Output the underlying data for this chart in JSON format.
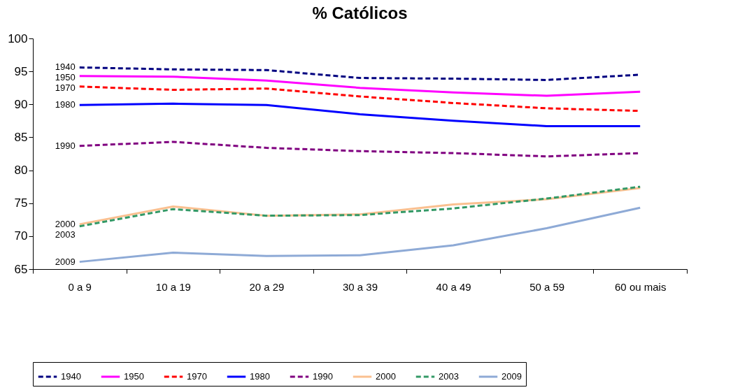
{
  "chart_data": {
    "type": "line",
    "title": "% Católicos",
    "categories": [
      "0 a 9",
      "10 a 19",
      "20 a 29",
      "30 a 39",
      "40 a 49",
      "50 a 59",
      "60 ou mais"
    ],
    "ylim": [
      65,
      100
    ],
    "yticks": [
      65,
      70,
      75,
      80,
      85,
      90,
      95,
      100
    ],
    "grid": false,
    "legend": "bottom",
    "marker": "none",
    "series": [
      {
        "name": "1940",
        "color": "#000080",
        "line_style": "dashed",
        "values": [
          95.6,
          95.3,
          95.2,
          94.0,
          93.9,
          93.7,
          94.5
        ]
      },
      {
        "name": "1950",
        "color": "#ff00ff",
        "line_style": "solid",
        "values": [
          94.3,
          94.2,
          93.6,
          92.5,
          91.8,
          91.3,
          91.9
        ]
      },
      {
        "name": "1970",
        "color": "#ff0000",
        "line_style": "dashed",
        "values": [
          92.7,
          92.2,
          92.4,
          91.2,
          90.2,
          89.4,
          89.0
        ]
      },
      {
        "name": "1980",
        "color": "#0000ff",
        "line_style": "solid",
        "values": [
          89.9,
          90.1,
          89.9,
          88.5,
          87.5,
          86.7,
          86.7
        ]
      },
      {
        "name": "1990",
        "color": "#800080",
        "line_style": "dashed",
        "values": [
          83.7,
          84.3,
          83.4,
          82.9,
          82.6,
          82.1,
          82.6
        ]
      },
      {
        "name": "2000",
        "color": "#fac090",
        "line_style": "solid",
        "values": [
          71.8,
          74.5,
          73.1,
          73.3,
          74.8,
          75.6,
          77.3
        ]
      },
      {
        "name": "2003",
        "color": "#339966",
        "line_style": "dashed",
        "values": [
          71.5,
          74.1,
          73.1,
          73.2,
          74.2,
          75.7,
          77.5
        ]
      },
      {
        "name": "2009",
        "color": "#8eaad6",
        "line_style": "solid",
        "values": [
          66.1,
          67.5,
          67.0,
          67.1,
          68.6,
          71.2,
          74.3
        ]
      }
    ]
  }
}
